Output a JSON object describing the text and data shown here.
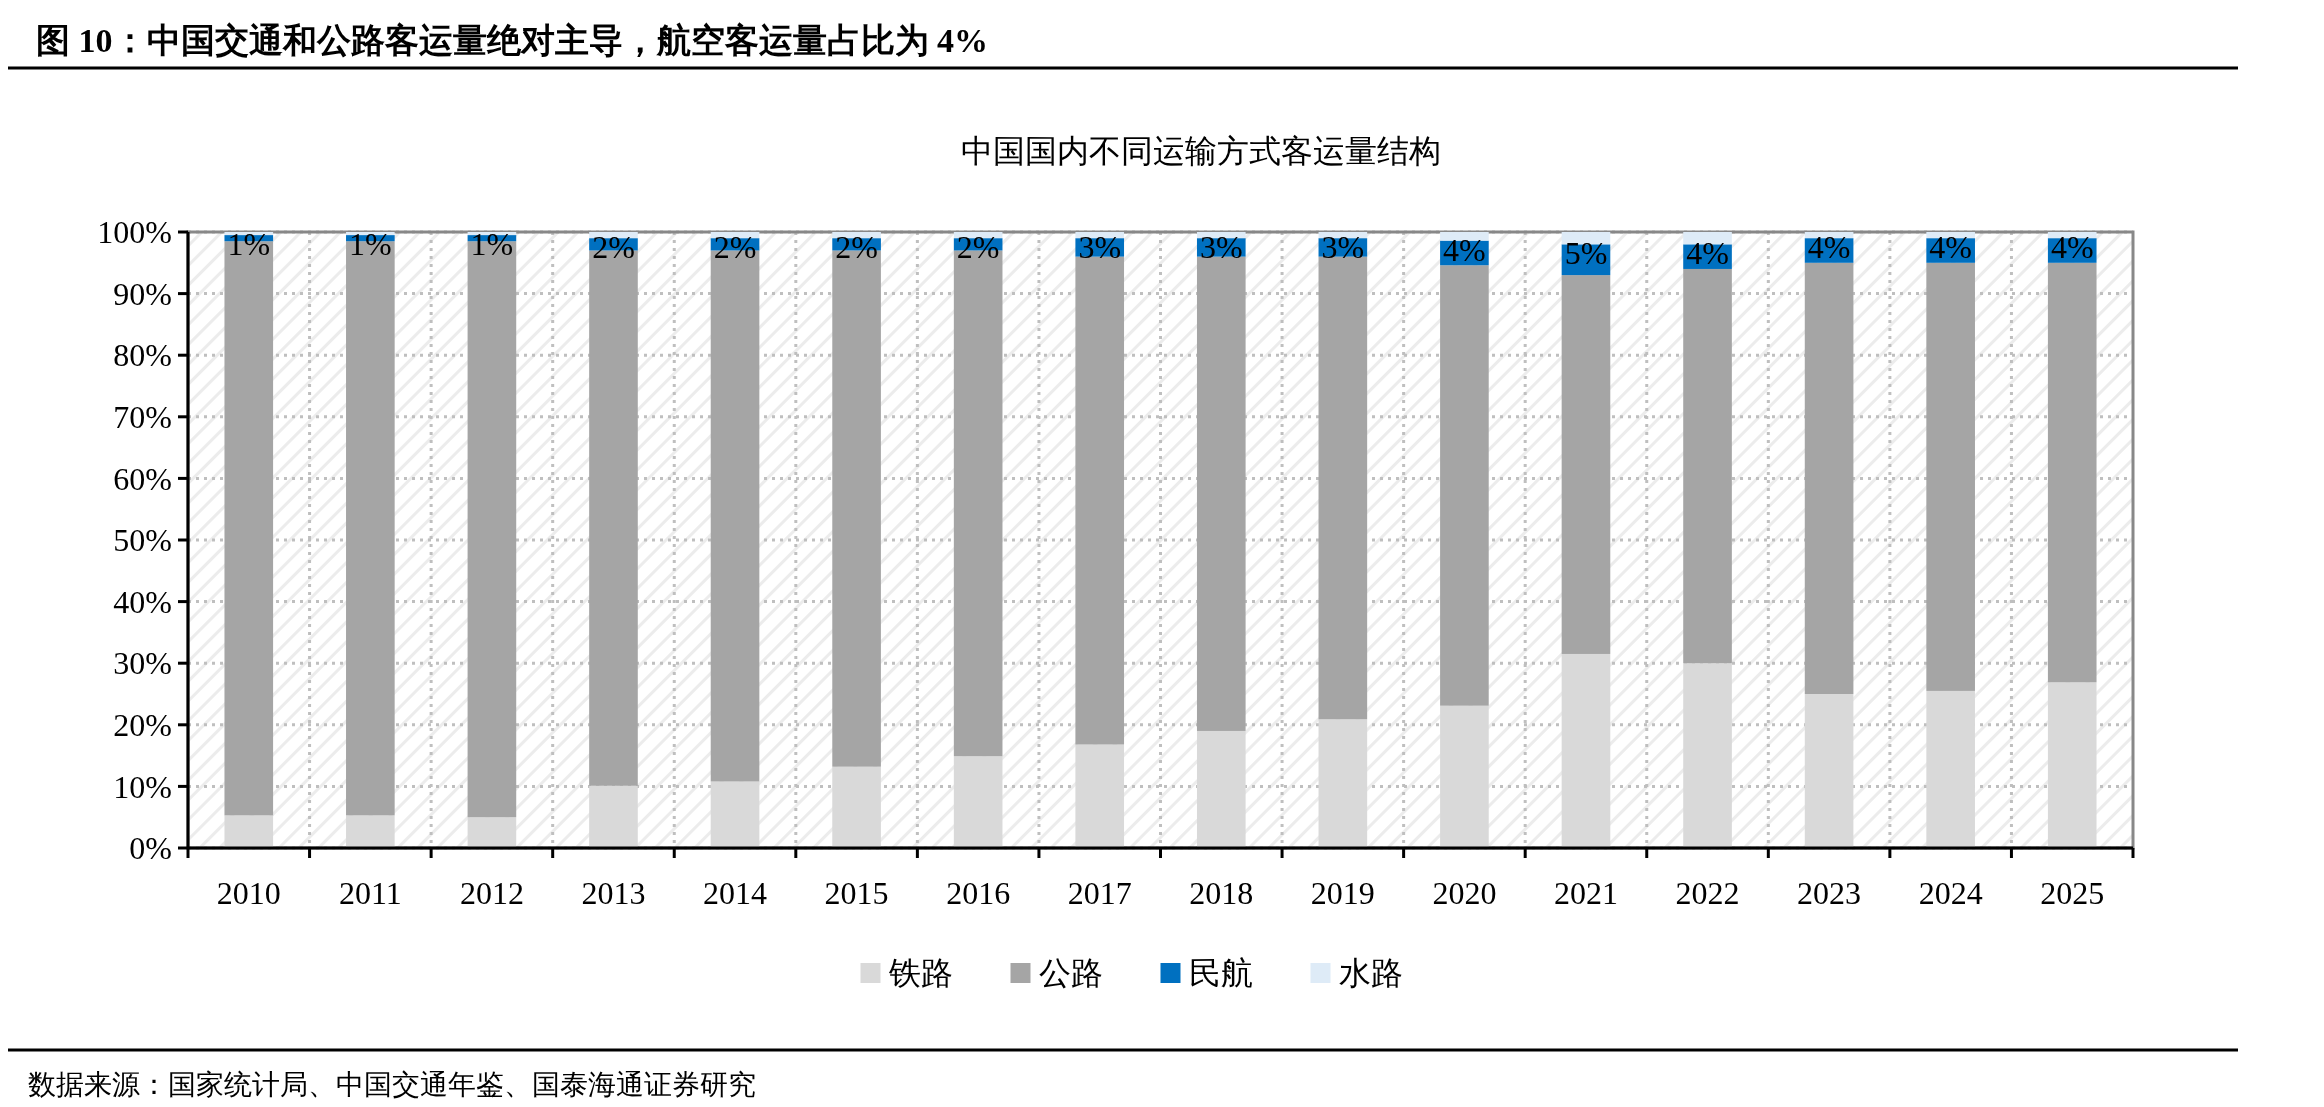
{
  "chart_data": {
    "type": "bar",
    "title": "图 10：中国交通和公路客运量绝对主导，航空客运量占比为 4%",
    "subtitle": "中国国内不同运输方式客运量结构",
    "categories": [
      "2010",
      "2011",
      "2012",
      "2013",
      "2014",
      "2015",
      "2016",
      "2017",
      "2018",
      "2019",
      "2020",
      "2021",
      "2022",
      "2023",
      "2024",
      "2025"
    ],
    "stacked": true,
    "series": [
      {
        "name": "铁路",
        "color": "#d9d9d9",
        "values": [
          5.3,
          5.3,
          5.0,
          10.1,
          10.8,
          13.2,
          14.9,
          16.8,
          19.0,
          20.9,
          23.1,
          31.5,
          30.0,
          25.0,
          25.5,
          26.9
        ]
      },
      {
        "name": "公路",
        "color": "#a5a5a5",
        "values": [
          93.2,
          93.2,
          93.5,
          86.9,
          86.2,
          83.8,
          82.1,
          79.2,
          77.0,
          75.1,
          71.5,
          61.5,
          64.0,
          70.0,
          69.5,
          68.1
        ]
      },
      {
        "name": "民航",
        "color": "#0070c0",
        "values": [
          1,
          1,
          1,
          2,
          2,
          2,
          2,
          3,
          3,
          3,
          4,
          5,
          4,
          4,
          4,
          4
        ],
        "value_labels": [
          "1%",
          "1%",
          "1%",
          "2%",
          "2%",
          "2%",
          "2%",
          "3%",
          "3%",
          "3%",
          "4%",
          "5%",
          "4%",
          "4%",
          "4%",
          "4%"
        ]
      },
      {
        "name": "水路",
        "color": "#deebf7",
        "values": [
          0.5,
          0.5,
          0.5,
          1,
          1,
          1,
          1,
          1,
          1,
          1,
          1.4,
          2,
          2,
          1,
          1,
          1
        ]
      }
    ],
    "ylim": [
      0,
      100
    ],
    "yticks": [
      {
        "value": 0,
        "label": "0%"
      },
      {
        "value": 10,
        "label": "10%"
      },
      {
        "value": 20,
        "label": "20%"
      },
      {
        "value": 30,
        "label": "30%"
      },
      {
        "value": 40,
        "label": "40%"
      },
      {
        "value": 50,
        "label": "50%"
      },
      {
        "value": 60,
        "label": "60%"
      },
      {
        "value": 70,
        "label": "70%"
      },
      {
        "value": 80,
        "label": "80%"
      },
      {
        "value": 90,
        "label": "90%"
      },
      {
        "value": 100,
        "label": "100%"
      }
    ],
    "grid": true,
    "legend": "bottom",
    "annotations": [
      "数据来源：国家统计局、中国交通年鉴、国泰海通证券研究"
    ]
  }
}
